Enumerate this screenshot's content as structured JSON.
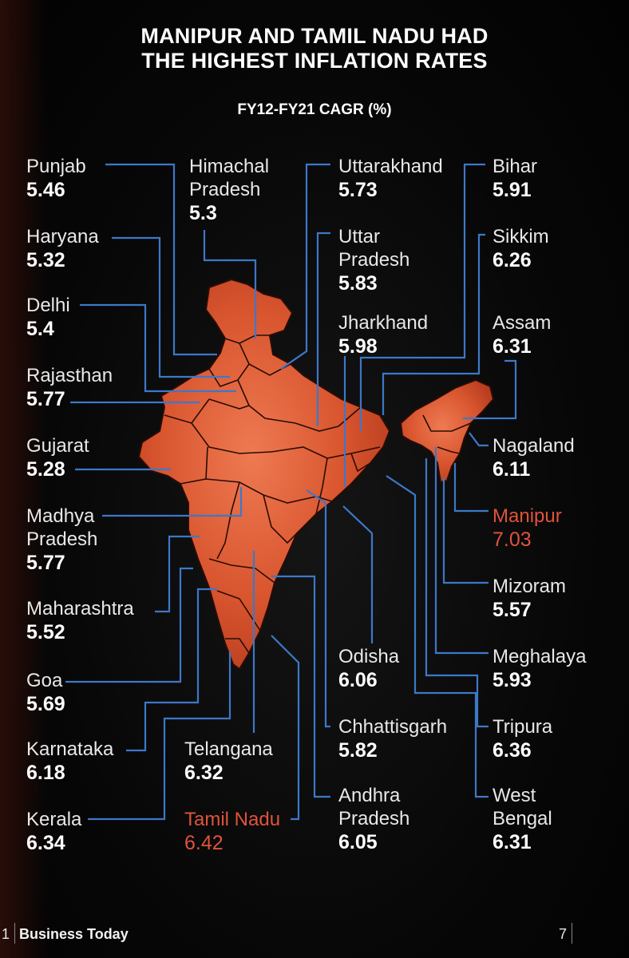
{
  "header": {
    "title_line1": "MANIPUR AND TAMIL NADU HAD",
    "title_line2": "THE HIGHEST INFLATION RATES",
    "subtitle": "FY12-FY21  CAGR (%)"
  },
  "colors": {
    "map_fill": "#d9562f",
    "map_border": "#2a0c06",
    "leader_line": "#3d78c8",
    "highlight": "#e0533a"
  },
  "states": [
    {
      "name": "Punjab",
      "value": "5.46"
    },
    {
      "name": "Haryana",
      "value": "5.32"
    },
    {
      "name": "Delhi",
      "value": "5.4"
    },
    {
      "name": "Rajasthan",
      "value": "5.77"
    },
    {
      "name": "Gujarat",
      "value": "5.28"
    },
    {
      "name_line1": "Madhya",
      "name_line2": "Pradesh",
      "value": "5.77"
    },
    {
      "name": "Maharashtra",
      "value": "5.52"
    },
    {
      "name": "Goa",
      "value": "5.69"
    },
    {
      "name": "Karnataka",
      "value": "6.18"
    },
    {
      "name": "Kerala",
      "value": "6.34"
    },
    {
      "name_line1": "Himachal",
      "name_line2": "Pradesh",
      "value": "5.3"
    },
    {
      "name": "Telangana",
      "value": "6.32"
    },
    {
      "name": "Tamil Nadu",
      "value": "6.42",
      "highlight": true
    },
    {
      "name": "Uttarakhand",
      "value": "5.73"
    },
    {
      "name_line1": "Uttar",
      "name_line2": "Pradesh",
      "value": "5.83"
    },
    {
      "name": "Jharkhand",
      "value": "5.98"
    },
    {
      "name": "Odisha",
      "value": "6.06"
    },
    {
      "name": "Chhattisgarh",
      "value": "5.82"
    },
    {
      "name_line1": "Andhra",
      "name_line2": "Pradesh",
      "value": "6.05"
    },
    {
      "name": "Bihar",
      "value": "5.91"
    },
    {
      "name": "Sikkim",
      "value": "6.26"
    },
    {
      "name": "Assam",
      "value": "6.31"
    },
    {
      "name": "Nagaland",
      "value": "6.11"
    },
    {
      "name": "Manipur",
      "value": "7.03",
      "highlight": true
    },
    {
      "name": "Mizoram",
      "value": "5.57"
    },
    {
      "name": "Meghalaya",
      "value": "5.93"
    },
    {
      "name": "Tripura",
      "value": "6.36"
    },
    {
      "name_line1": "West",
      "name_line2": "Bengal",
      "value": "6.31"
    }
  ],
  "footer": {
    "page_left": "1",
    "brand": "Business Today",
    "page_right": "7"
  }
}
